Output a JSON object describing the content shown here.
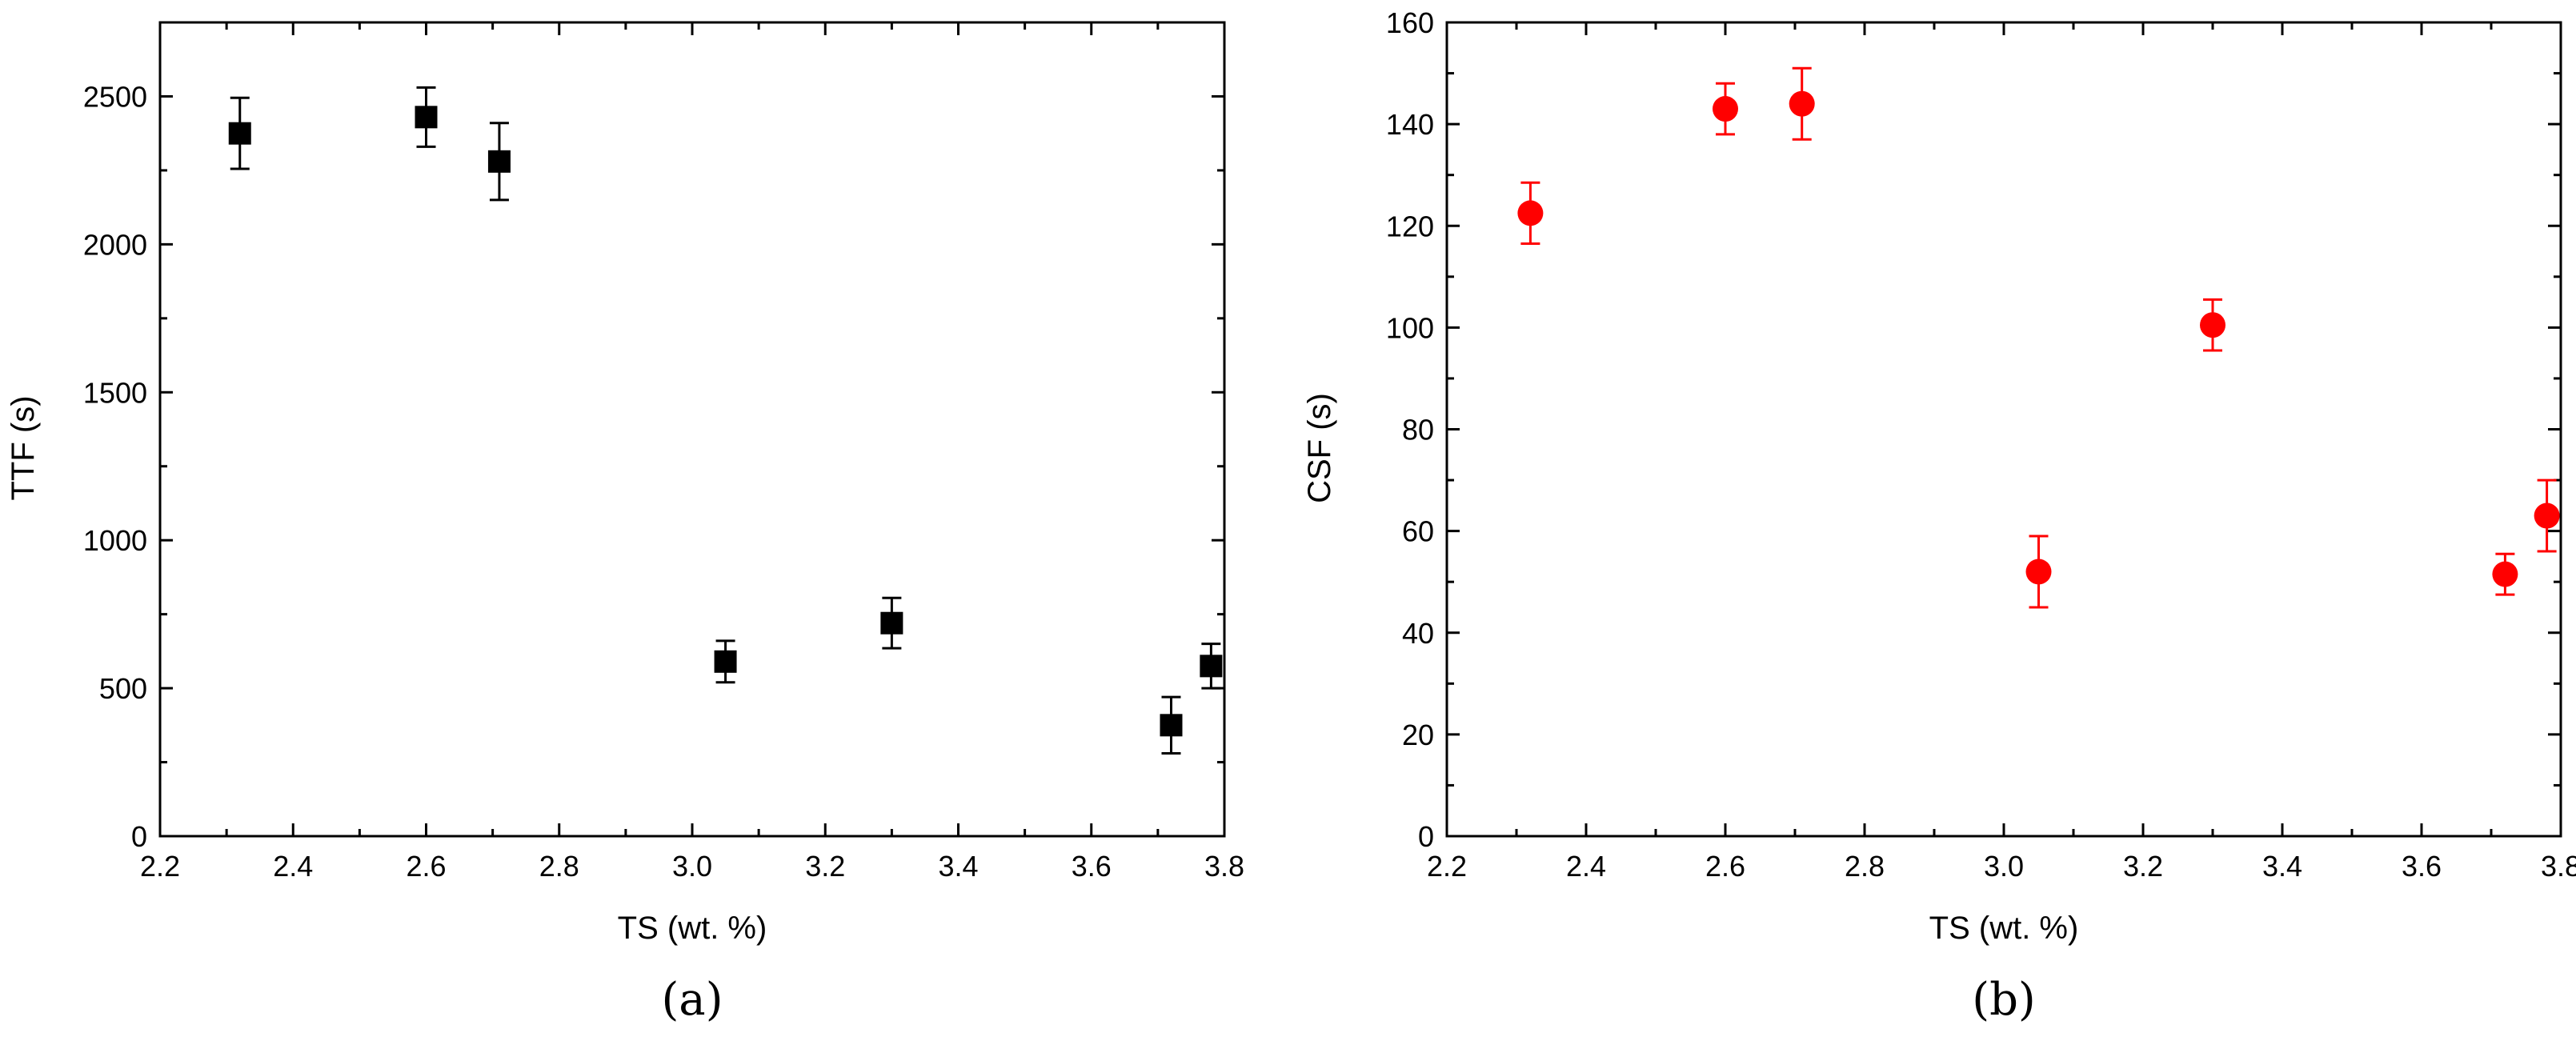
{
  "chart_data": [
    {
      "type": "scatter",
      "panel_label": "(a)",
      "xlabel": "TS (wt. %)",
      "ylabel": "TTF (s)",
      "xlim": [
        2.2,
        3.8
      ],
      "ylim": [
        0,
        2750
      ],
      "x_ticks": [
        2.2,
        2.4,
        2.6,
        2.8,
        3.0,
        3.2,
        3.4,
        3.6,
        3.8
      ],
      "x_tick_labels": [
        "2.2",
        "2.4",
        "2.6",
        "2.8",
        "3.0",
        "3.2",
        "3.4",
        "3.6",
        "3.8"
      ],
      "y_ticks": [
        0,
        500,
        1000,
        1500,
        2000,
        2500
      ],
      "y_tick_labels": [
        "0",
        "500",
        "1000",
        "1500",
        "2000",
        "2500"
      ],
      "marker": "square",
      "color": "#000000",
      "grid": false,
      "points": [
        {
          "x": 2.32,
          "y": 2375,
          "err": 120
        },
        {
          "x": 2.6,
          "y": 2430,
          "err": 100
        },
        {
          "x": 2.71,
          "y": 2280,
          "err": 130
        },
        {
          "x": 3.05,
          "y": 590,
          "err": 70
        },
        {
          "x": 3.3,
          "y": 720,
          "err": 85
        },
        {
          "x": 3.72,
          "y": 375,
          "err": 95
        },
        {
          "x": 3.78,
          "y": 575,
          "err": 75
        }
      ]
    },
    {
      "type": "scatter",
      "panel_label": "(b)",
      "xlabel": "TS (wt. %)",
      "ylabel": "CSF (s)",
      "xlim": [
        2.2,
        3.8
      ],
      "ylim": [
        0,
        160
      ],
      "x_ticks": [
        2.2,
        2.4,
        2.6,
        2.8,
        3.0,
        3.2,
        3.4,
        3.6,
        3.8
      ],
      "x_tick_labels": [
        "2.2",
        "2.4",
        "2.6",
        "2.8",
        "3.0",
        "3.2",
        "3.4",
        "3.6",
        "3.8"
      ],
      "y_ticks": [
        0,
        20,
        40,
        60,
        80,
        100,
        120,
        140,
        160
      ],
      "y_tick_labels": [
        "0",
        "20",
        "40",
        "60",
        "80",
        "100",
        "120",
        "140",
        "160"
      ],
      "marker": "circle",
      "color": "#ff0000",
      "grid": false,
      "points": [
        {
          "x": 2.32,
          "y": 122.5,
          "err": 6
        },
        {
          "x": 2.6,
          "y": 143,
          "err": 5
        },
        {
          "x": 2.71,
          "y": 144,
          "err": 7
        },
        {
          "x": 3.05,
          "y": 52,
          "err": 7
        },
        {
          "x": 3.3,
          "y": 100.5,
          "err": 5
        },
        {
          "x": 3.72,
          "y": 51.5,
          "err": 4
        },
        {
          "x": 3.78,
          "y": 63,
          "err": 7
        }
      ]
    }
  ]
}
